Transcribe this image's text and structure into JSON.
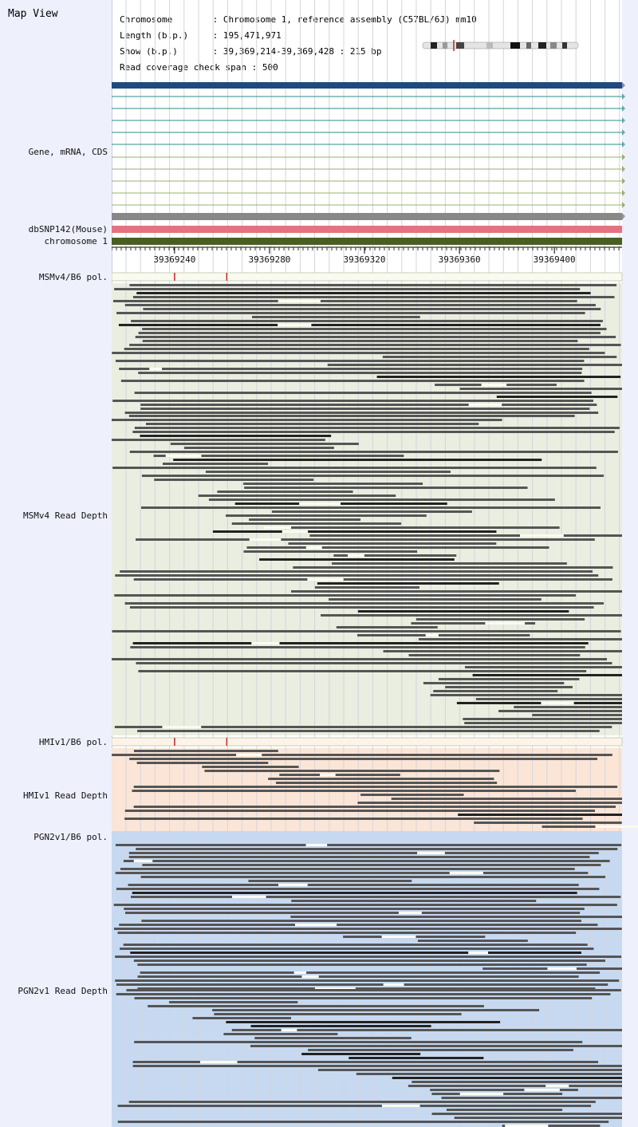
{
  "app_title": "Map View",
  "info": {
    "chromosome_key": "Chromosome",
    "chromosome_val": "Chromosome 1, reference assembly (C57BL/6J) mm10",
    "length_key": "Length (b.p.)",
    "length_val": "195,471,971",
    "show_key": "Show (b.p.)",
    "show_val": "39,369,214-39,369,428 : 215 bp",
    "span_key": "Read coverage check span",
    "span_val": "500"
  },
  "labels": {
    "gene": "Gene, mRNA, CDS",
    "dbsnp": "dbSNP142(Mouse)",
    "chrom": "chromosome 1",
    "msm_pol": "MSMv4/B6 pol.",
    "msm_depth": "MSMv4 Read Depth",
    "hmi_pol": "HMIv1/B6 pol.",
    "hmi_depth": "HMIv1 Read Depth",
    "pgn_pol": "PGN2v1/B6 pol.",
    "pgn_depth": "PGN2v1 Read Depth"
  },
  "ruler": {
    "ticks": [
      "39369240",
      "39369280",
      "39369320",
      "39369360",
      "39369400"
    ],
    "tick_values": [
      39369240,
      39369280,
      39369320,
      39369360,
      39369400
    ],
    "start": 39369214,
    "end": 39369428
  },
  "snp_positions": [
    39369240,
    39369262
  ],
  "colors": {
    "gene_main": "#1f4a7c",
    "mrna": "#2e8b8b",
    "cds": "#6b8e23",
    "dbsnp": "#e57280",
    "chrom": "#4a5e23",
    "msm_bg": "#e9eee0",
    "hmi_bg": "#fbe5d6",
    "pgn_bg": "#c6d9f0",
    "read": "#555555",
    "read_dark": "#222222",
    "snp_mark": "#cc2222"
  }
}
